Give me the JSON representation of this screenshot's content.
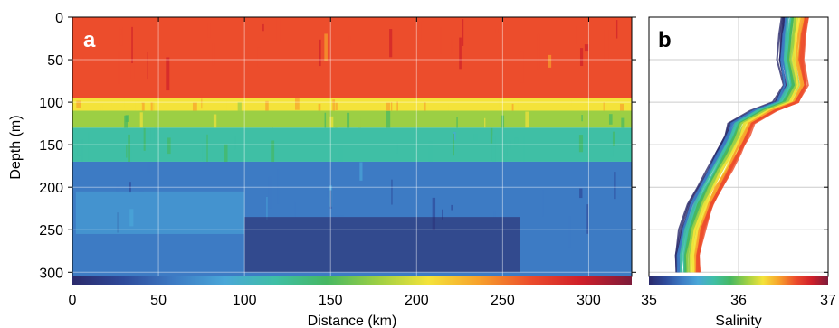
{
  "chart_data": [
    {
      "panel": "a",
      "type": "heatmap",
      "xlabel": "Distance (km)",
      "ylabel": "Depth (m)",
      "xlim": [
        0,
        325
      ],
      "ylim": [
        305,
        0
      ],
      "xticks": [
        0,
        50,
        100,
        150,
        200,
        250,
        300
      ],
      "yticks": [
        0,
        50,
        100,
        150,
        200,
        250,
        300
      ],
      "grid": true,
      "colorbar": {
        "label": "Salinity",
        "range": [
          35,
          37
        ],
        "colors": [
          "#2b2a6b",
          "#2e4a9a",
          "#3d7bc4",
          "#4aa7d8",
          "#3fbfa5",
          "#46b862",
          "#9ccf44",
          "#f4e33a",
          "#f7a12c",
          "#ec4d2c",
          "#cf1f2a",
          "#7d1b3a"
        ]
      },
      "layers": [
        {
          "depth_range": [
            0,
            95
          ],
          "salinity": 36.7,
          "description_color": "#e8282b"
        },
        {
          "depth_range": [
            95,
            110
          ],
          "salinity": 36.35,
          "description_color": "#f4e33a"
        },
        {
          "depth_range": [
            110,
            130
          ],
          "salinity": 36.05,
          "description_color": "#6dc04c"
        },
        {
          "depth_range": [
            130,
            170
          ],
          "salinity": 35.8,
          "description_color": "#43a8c8"
        },
        {
          "depth_range": [
            170,
            305
          ],
          "salinity": 35.35,
          "description_color": "#2f55a6"
        }
      ]
    },
    {
      "panel": "b",
      "type": "line",
      "xlabel": "Salinity",
      "xlim": [
        35,
        37
      ],
      "ylim": [
        305,
        0
      ],
      "xticks": [
        35,
        36,
        37
      ],
      "grid": true,
      "profile_depths": [
        0,
        20,
        50,
        80,
        100,
        110,
        125,
        140,
        160,
        180,
        200,
        220,
        250,
        280,
        300
      ],
      "profile_salinity": [
        36.65,
        36.62,
        36.6,
        36.65,
        36.55,
        36.3,
        36.05,
        36.0,
        35.9,
        35.8,
        35.7,
        35.6,
        35.5,
        35.45,
        35.45
      ],
      "profile_colors": [
        "#2b2a6b",
        "#3d7bc4",
        "#3fbfa5",
        "#46b862",
        "#9ccf44",
        "#f4e33a",
        "#f7a12c",
        "#ec4d2c"
      ]
    }
  ],
  "panel_labels": {
    "a": "a",
    "b": "b"
  }
}
